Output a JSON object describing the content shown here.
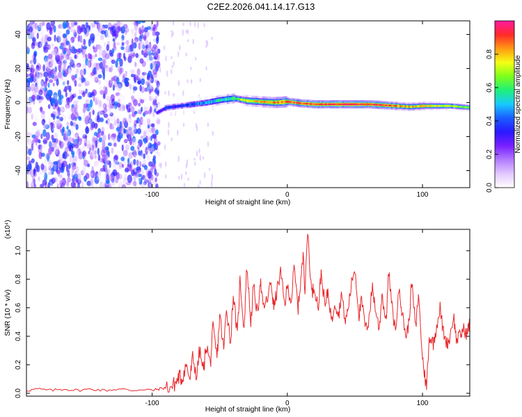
{
  "title": "C2E2.2026.041.14.17.G13",
  "colors": {
    "axis": "#000000",
    "snr_line": "#e8262a",
    "colormap": [
      "#ffffff",
      "#e3c8ff",
      "#b27cff",
      "#7a1fff",
      "#2a18ff",
      "#1a5cff",
      "#19c9ff",
      "#1ff07a",
      "#7cff1a",
      "#f6ff14",
      "#ff9a12",
      "#ff2a2a",
      "#ff1aa0"
    ]
  },
  "chart_data": [
    {
      "type": "heatmap",
      "name": "spectrogram",
      "xlabel": "Height of straight line (km)",
      "ylabel": "Frequency (Hz)",
      "xlim": [
        -193,
        135
      ],
      "ylim": [
        -50,
        48
      ],
      "xticks": [
        -100,
        0,
        100
      ],
      "yticks": [
        -40,
        -20,
        0,
        20,
        40
      ],
      "xtick_labels": [
        "-100",
        "0",
        "100"
      ],
      "ytick_labels": [
        "-40",
        "-20",
        "0",
        "20",
        "40"
      ],
      "colorbar": {
        "label": "Normalized spectral amplitude",
        "range": [
          0,
          1
        ],
        "ticks": [
          0.0,
          0.2,
          0.4,
          0.6,
          0.8
        ],
        "tick_labels": [
          "0.0",
          "0.2",
          "0.4",
          "0.6",
          "0.8"
        ]
      },
      "noise_region_x": [
        -193,
        -95
      ],
      "ridge": {
        "x": [
          -97,
          -90,
          -80,
          -70,
          -60,
          -50,
          -40,
          -30,
          -20,
          -10,
          0,
          10,
          20,
          30,
          40,
          50,
          60,
          70,
          80,
          90,
          100,
          110,
          120,
          135
        ],
        "frequency": [
          -6,
          -3,
          -2,
          -1,
          0,
          1.5,
          2.5,
          1,
          0.5,
          0,
          0.5,
          -0.5,
          -1,
          -1,
          -1,
          -1,
          -1,
          -1.5,
          -2,
          -2.5,
          -2,
          -2,
          -2,
          -3
        ],
        "amplitude": [
          0.25,
          0.35,
          0.35,
          0.4,
          0.45,
          0.55,
          0.6,
          0.75,
          0.8,
          0.85,
          0.88,
          0.9,
          0.92,
          0.92,
          0.95,
          0.95,
          0.93,
          0.9,
          0.85,
          0.8,
          0.8,
          0.75,
          0.7,
          0.65
        ]
      }
    },
    {
      "type": "line",
      "name": "snr",
      "xlabel": "Height of straight line (km)",
      "ylabel": "SNR (10 * v/v)",
      "y_multiplier": "(x10⁴)",
      "xlim": [
        -193,
        135
      ],
      "ylim": [
        -0.02,
        1.15
      ],
      "xticks": [
        -100,
        0,
        100
      ],
      "yticks": [
        0.0,
        0.2,
        0.4,
        0.6,
        0.8,
        1.0
      ],
      "xtick_labels": [
        "-100",
        "0",
        "100"
      ],
      "ytick_labels": [
        "0.0",
        "0.2",
        "0.4",
        "0.6",
        "0.8",
        "1.0"
      ],
      "x": [
        -193,
        -185,
        -175,
        -165,
        -155,
        -145,
        -135,
        -125,
        -115,
        -105,
        -100,
        -95,
        -90,
        -85,
        -82,
        -80,
        -78,
        -75,
        -72,
        -70,
        -67,
        -65,
        -62,
        -60,
        -57,
        -55,
        -52,
        -50,
        -47,
        -45,
        -42,
        -40,
        -37,
        -35,
        -32,
        -30,
        -27,
        -25,
        -22,
        -20,
        -18,
        -15,
        -12,
        -10,
        -8,
        -5,
        -2,
        0,
        3,
        5,
        8,
        10,
        12,
        13,
        15,
        18,
        20,
        23,
        25,
        28,
        30,
        33,
        35,
        38,
        40,
        43,
        45,
        48,
        50,
        53,
        55,
        58,
        60,
        63,
        65,
        68,
        70,
        73,
        75,
        78,
        80,
        83,
        85,
        88,
        90,
        92,
        95,
        97,
        100,
        102,
        103,
        105,
        108,
        110,
        113,
        115,
        118,
        120,
        123,
        125,
        128,
        130,
        133,
        135
      ],
      "values": [
        0.02,
        0.03,
        0.02,
        0.03,
        0.02,
        0.03,
        0.02,
        0.03,
        0.02,
        0.03,
        0.02,
        0.03,
        0.04,
        0.05,
        0.08,
        0.12,
        0.1,
        0.2,
        0.1,
        0.25,
        0.12,
        0.3,
        0.15,
        0.35,
        0.2,
        0.45,
        0.25,
        0.55,
        0.3,
        0.62,
        0.35,
        0.7,
        0.4,
        0.8,
        0.45,
        0.9,
        0.5,
        0.75,
        0.55,
        0.8,
        0.6,
        0.65,
        0.78,
        0.6,
        0.7,
        0.85,
        0.62,
        0.75,
        0.65,
        0.88,
        0.6,
        0.8,
        0.98,
        0.7,
        1.15,
        0.7,
        0.75,
        0.6,
        0.85,
        0.6,
        0.72,
        0.5,
        0.65,
        0.55,
        0.7,
        0.5,
        0.6,
        0.8,
        0.88,
        0.55,
        0.65,
        0.45,
        0.5,
        0.75,
        0.6,
        0.45,
        0.7,
        0.5,
        0.85,
        0.55,
        0.45,
        0.75,
        0.55,
        0.4,
        0.5,
        0.78,
        0.45,
        0.7,
        0.25,
        0.1,
        0.05,
        0.4,
        0.35,
        0.45,
        0.6,
        0.45,
        0.35,
        0.38,
        0.55,
        0.38,
        0.4,
        0.45,
        0.42,
        0.5
      ]
    }
  ]
}
